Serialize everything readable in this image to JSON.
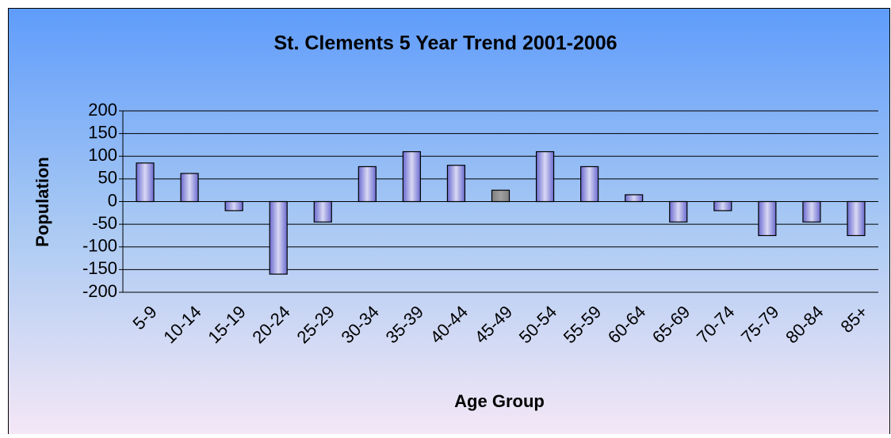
{
  "chart_data": {
    "type": "bar",
    "title": "St. Clements 5 Year Trend 2001-2006",
    "x_label": "Age Group",
    "y_label": "Population",
    "categories": [
      "5-9",
      "10-14",
      "15-19",
      "20-24",
      "25-29",
      "30-34",
      "35-39",
      "40-44",
      "45-49",
      "50-54",
      "55-59",
      "60-64",
      "65-69",
      "70-74",
      "75-79",
      "80-84",
      "85+"
    ],
    "values": [
      85,
      62,
      -20,
      -160,
      -45,
      77,
      110,
      80,
      25,
      110,
      77,
      15,
      -45,
      -20,
      -75,
      -45,
      -75
    ],
    "colors": [
      "#6a6ad0",
      "#6a6ad0",
      "#6a6ad0",
      "#6a6ad0",
      "#6a6ad0",
      "#6a6ad0",
      "#6a6ad0",
      "#6a6ad0",
      "#808080",
      "#6a6ad0",
      "#6a6ad0",
      "#6a6ad0",
      "#6a6ad0",
      "#6a6ad0",
      "#6a6ad0",
      "#6a6ad0",
      "#6a6ad0"
    ],
    "ylim": [
      -200,
      200
    ],
    "yticks": [
      -200,
      -150,
      -100,
      -50,
      0,
      50,
      100,
      150,
      200
    ],
    "grid": true
  }
}
